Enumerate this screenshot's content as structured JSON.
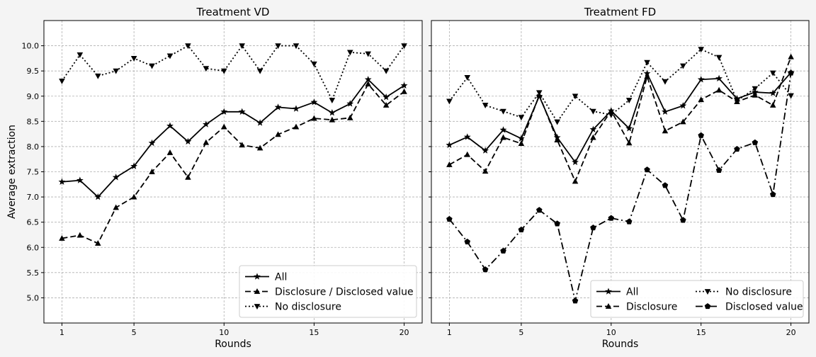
{
  "chart_data": [
    {
      "type": "line",
      "title": "Treatment VD",
      "xlabel": "Rounds",
      "ylabel": "Average extraction",
      "xlim": [
        0.0,
        21.0
      ],
      "ylim": [
        4.5,
        10.5
      ],
      "xticks": [
        1,
        5,
        10,
        15,
        20
      ],
      "yticks": [
        5.0,
        5.5,
        6.0,
        6.5,
        7.0,
        7.5,
        8.0,
        8.5,
        9.0,
        9.5,
        10.0
      ],
      "ytick_labels": [
        "5.0",
        "5.5",
        "6.0",
        "6.5",
        "7.0",
        "7.5",
        "8.0",
        "8.5",
        "9.0",
        "9.5",
        "10.0"
      ],
      "grid": true,
      "legend_position": "lower-right",
      "legend_columns": 1,
      "x": [
        1,
        2,
        3,
        4,
        5,
        6,
        7,
        8,
        9,
        10,
        11,
        12,
        13,
        14,
        15,
        16,
        17,
        18,
        19,
        20
      ],
      "series": [
        {
          "name": "All",
          "style": "solid",
          "marker": "star",
          "values": [
            7.3,
            7.33,
            7.0,
            7.39,
            7.61,
            8.07,
            8.41,
            8.1,
            8.44,
            8.69,
            8.69,
            8.47,
            8.78,
            8.75,
            8.88,
            8.67,
            8.85,
            9.33,
            8.98,
            9.21
          ]
        },
        {
          "name": "Disclosure  / Disclosed value",
          "style": "dashed",
          "marker": "triangle-up",
          "values": [
            6.18,
            6.24,
            6.08,
            6.79,
            7.0,
            7.5,
            7.88,
            7.39,
            8.08,
            8.39,
            8.03,
            7.97,
            8.24,
            8.39,
            8.56,
            8.53,
            8.57,
            9.24,
            8.82,
            9.09
          ]
        },
        {
          "name": "No disclosure",
          "style": "dotted",
          "marker": "triangle-down",
          "values": [
            9.3,
            9.82,
            9.4,
            9.5,
            9.75,
            9.6,
            9.8,
            10.0,
            9.55,
            9.5,
            10.0,
            9.5,
            10.0,
            10.0,
            9.64,
            8.92,
            9.87,
            9.84,
            9.5,
            10.0
          ]
        }
      ]
    },
    {
      "type": "line",
      "title": "Treatment FD",
      "xlabel": "Rounds",
      "ylabel": "",
      "xlim": [
        0.0,
        21.0
      ],
      "ylim": [
        4.5,
        10.5
      ],
      "xticks": [
        1,
        5,
        10,
        15,
        20
      ],
      "grid": true,
      "legend_position": "lower-right",
      "legend_columns": 2,
      "x": [
        1,
        2,
        3,
        4,
        5,
        6,
        7,
        8,
        9,
        10,
        11,
        12,
        13,
        14,
        15,
        16,
        17,
        18,
        19,
        20
      ],
      "series": [
        {
          "name": "All",
          "style": "solid",
          "marker": "star",
          "values": [
            8.03,
            8.19,
            7.92,
            8.33,
            8.16,
            9.0,
            8.18,
            7.69,
            8.34,
            8.71,
            8.36,
            9.45,
            8.69,
            8.81,
            9.33,
            9.35,
            8.95,
            9.08,
            9.06,
            9.47
          ]
        },
        {
          "name": "Disclosure",
          "style": "dashed",
          "marker": "triangle-up",
          "values": [
            7.64,
            7.84,
            7.51,
            8.18,
            8.06,
            9.02,
            8.13,
            7.31,
            8.18,
            8.71,
            8.07,
            9.39,
            8.31,
            8.49,
            8.93,
            9.12,
            8.89,
            9.02,
            8.82,
            9.78
          ]
        },
        {
          "name": "No disclosure",
          "style": "dotted",
          "marker": "triangle-down",
          "values": [
            8.9,
            9.37,
            8.82,
            8.7,
            8.58,
            9.07,
            8.49,
            9.0,
            8.7,
            8.63,
            8.92,
            9.67,
            9.29,
            9.6,
            9.93,
            9.77,
            8.91,
            9.15,
            9.46,
            9.01
          ]
        },
        {
          "name": "Disclosed value",
          "style": "dashdot",
          "marker": "pentagon",
          "values": [
            6.56,
            6.11,
            5.56,
            5.93,
            6.35,
            6.74,
            6.47,
            4.94,
            6.39,
            6.58,
            6.51,
            7.54,
            7.23,
            6.54,
            8.22,
            7.53,
            7.95,
            8.08,
            7.05,
            9.46
          ]
        }
      ]
    }
  ]
}
